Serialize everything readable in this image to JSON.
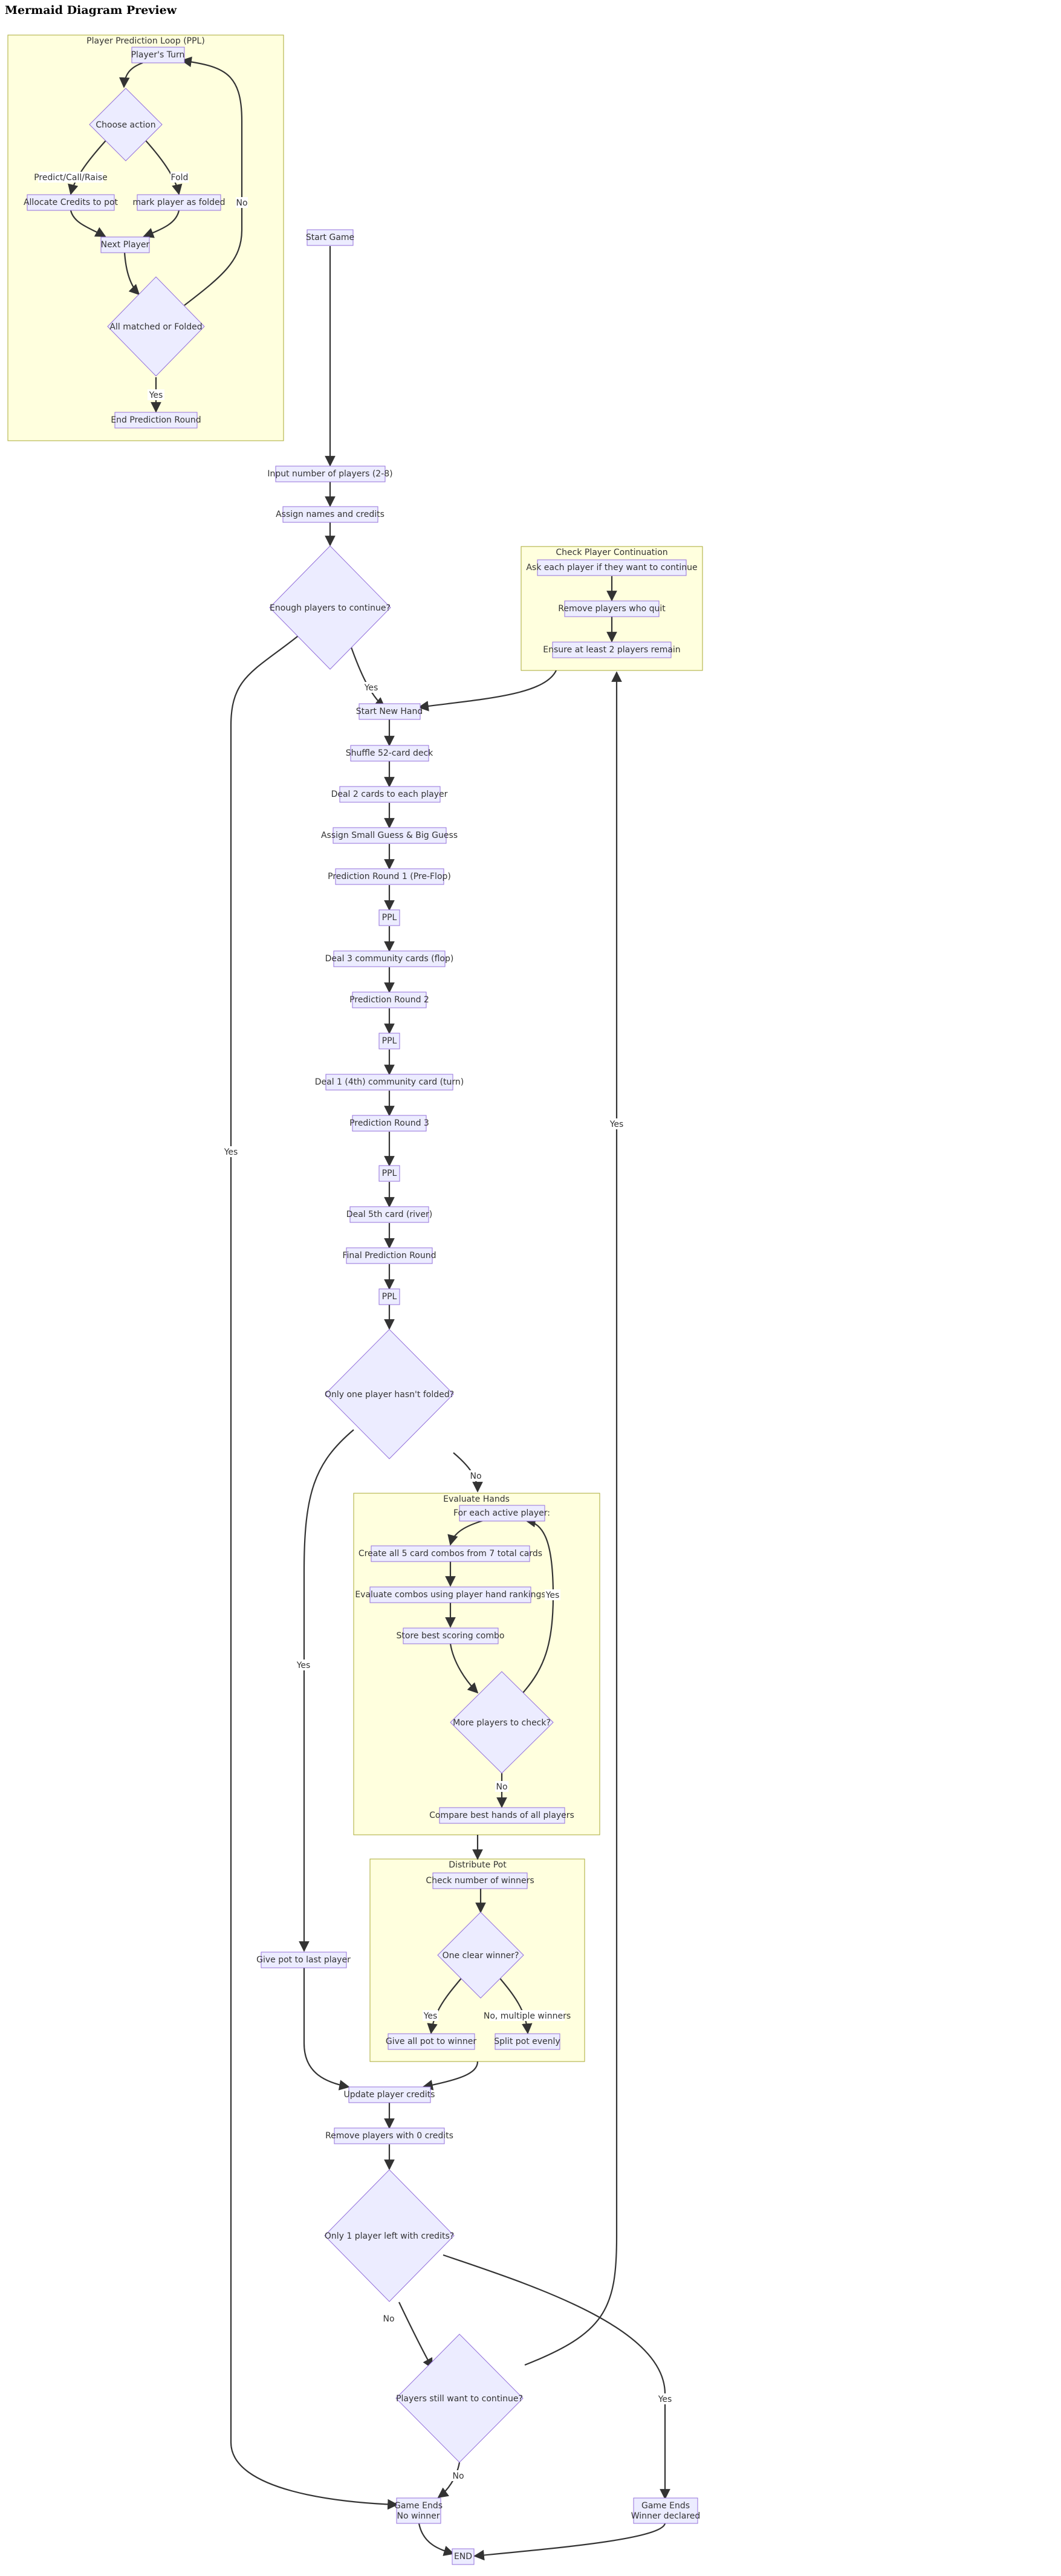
{
  "page": {
    "title": "Mermaid Diagram Preview"
  },
  "subgraphs": {
    "ppl": "Player Prediction Loop (PPL)",
    "check": "Check Player Continuation",
    "evaluate": "Evaluate Hands",
    "distribute": "Distribute Pot"
  },
  "nodes": {
    "players_turn": "Player's Turn",
    "choose_action": "Choose action",
    "allocate": "Allocate Credits to pot",
    "mark_folded": "mark player as folded",
    "next_player": "Next Player",
    "all_matched": "All matched or Folded",
    "end_prediction": "End Prediction Round",
    "start_game": "Start Game",
    "input_players": "Input number of players (2-8)",
    "assign_names": "Assign names and credits",
    "enough_players": "Enough players to continue?",
    "ask_each": "Ask each player if they want to continue",
    "remove_quit": "Remove players who quit",
    "ensure_two": "Ensure at least 2 players remain",
    "start_hand": "Start New Hand",
    "shuffle": "Shuffle 52-card deck",
    "deal_two": "Deal 2 cards to each player",
    "blinds": "Assign Small Guess & Big Guess",
    "pr1": "Prediction Round 1 (Pre-Flop)",
    "ppl1": "PPL",
    "flop": "Deal 3 community cards (flop)",
    "pr2": "Prediction Round 2",
    "ppl2": "PPL",
    "turn": "Deal 1 (4th) community card (turn)",
    "pr3": "Prediction Round 3",
    "ppl3": "PPL",
    "river": "Deal 5th card (river)",
    "final_pr": "Final Prediction Round",
    "ppl4": "PPL",
    "only_one": "Only one player hasn't folded?",
    "each_active": "For each active player:",
    "combos": "Create all 5 card combos from 7 total cards",
    "rankings": "Evaluate combos using player hand rankings",
    "store_best": "Store best scoring combo",
    "more_players": "More players to check?",
    "compare": "Compare best hands of all players",
    "check_winners": "Check number of winners",
    "clear_winner": "One clear winner?",
    "give_winner": "Give all pot to winner",
    "split": "Split pot evenly",
    "give_last": "Give pot to last player",
    "update_credits": "Update player credits",
    "remove_zero": "Remove players with 0 credits",
    "one_left": "Only 1 player left with credits?",
    "still_continue": "Players still want to continue?",
    "game_ends_no_winner_1": "Game Ends",
    "game_ends_no_winner_2": "No winner",
    "game_ends_winner_1": "Game Ends",
    "game_ends_winner_2": "Winner declared",
    "end": "END"
  },
  "edge_labels": {
    "predict_call_raise": "Predict/Call/Raise",
    "fold": "Fold",
    "ppl_no": "No",
    "ppl_yes": "Yes",
    "enough_yes": "Yes",
    "enough_no_winner_yes": "Yes",
    "only_one_no": "No",
    "only_one_yes": "Yes",
    "more_yes": "Yes",
    "more_no": "No",
    "clear_yes": "Yes",
    "clear_no": "No, multiple winners",
    "one_left_no": "No",
    "one_left_yes": "Yes",
    "continue_yes": "Yes",
    "continue_no": "No"
  }
}
